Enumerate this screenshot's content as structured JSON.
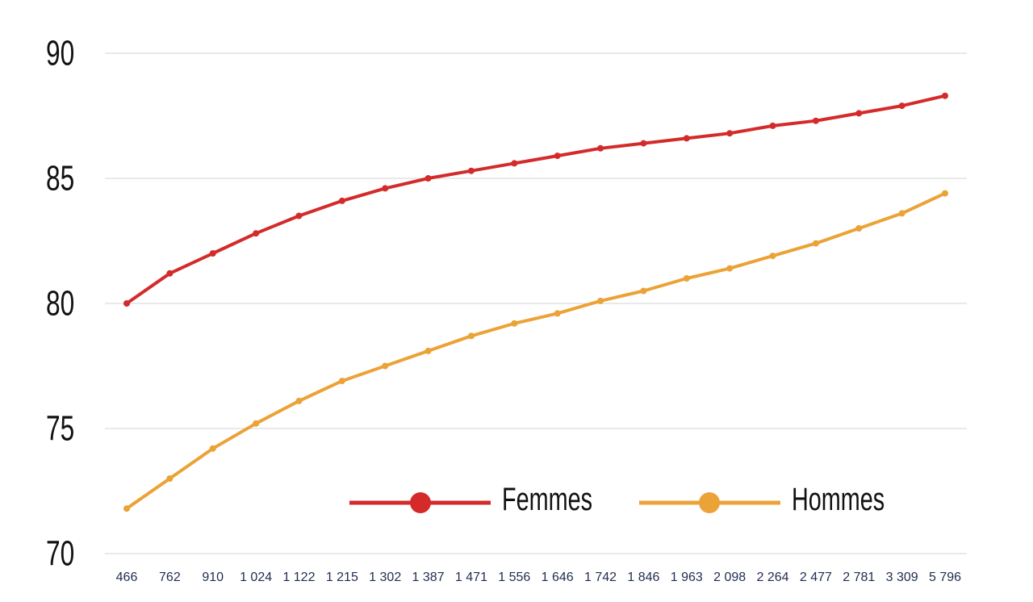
{
  "chart_data": {
    "type": "line",
    "title": "",
    "xlabel": "",
    "ylabel": "",
    "categories": [
      "466",
      "762",
      "910",
      "1 024",
      "1 122",
      "1 215",
      "1 302",
      "1 387",
      "1 471",
      "1 556",
      "1 646",
      "1 742",
      "1 846",
      "1 963",
      "2 098",
      "2 264",
      "2 477",
      "2 781",
      "3 309",
      "5 796"
    ],
    "yticks": [
      70,
      75,
      80,
      85,
      90
    ],
    "ylim": [
      70,
      90
    ],
    "grid": true,
    "legend_position": "bottom-right, inside plot",
    "series": [
      {
        "name": "Femmes",
        "color": "#d42a2a",
        "values": [
          80.0,
          81.2,
          82.0,
          82.8,
          83.5,
          84.1,
          84.6,
          85.0,
          85.3,
          85.6,
          85.9,
          86.2,
          86.4,
          86.6,
          86.8,
          87.1,
          87.3,
          87.6,
          87.9,
          88.3
        ]
      },
      {
        "name": "Hommes",
        "color": "#eba236",
        "values": [
          71.8,
          73.0,
          74.2,
          75.2,
          76.1,
          76.9,
          77.5,
          78.1,
          78.7,
          79.2,
          79.6,
          80.1,
          80.5,
          81.0,
          81.4,
          81.9,
          82.4,
          83.0,
          83.6,
          84.4
        ]
      }
    ]
  }
}
